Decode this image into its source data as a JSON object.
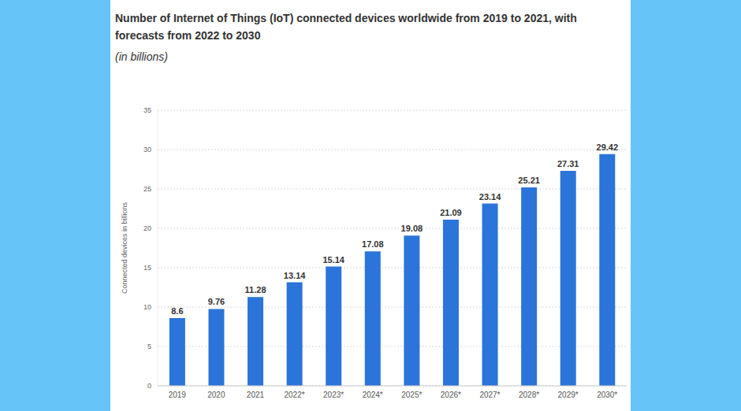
{
  "chart_data": {
    "type": "bar",
    "title": "Number of Internet of Things (IoT) connected devices worldwide from 2019 to 2021, with forecasts from 2022 to 2030",
    "subtitle": "(in billions)",
    "y_label": "Connected devices in billions",
    "categories": [
      "2019",
      "2020",
      "2021",
      "2022*",
      "2023*",
      "2024*",
      "2025*",
      "2026*",
      "2027*",
      "2028*",
      "2029*",
      "2030*"
    ],
    "values": [
      8.6,
      9.76,
      11.28,
      13.14,
      15.14,
      17.08,
      19.08,
      21.09,
      23.14,
      25.21,
      27.31,
      29.42
    ],
    "color": "#2b74d9",
    "ylim": [
      0,
      35
    ],
    "yticks": [
      0,
      5,
      10,
      15,
      20,
      25,
      30,
      35
    ],
    "grid": true,
    "data_labels": true
  }
}
